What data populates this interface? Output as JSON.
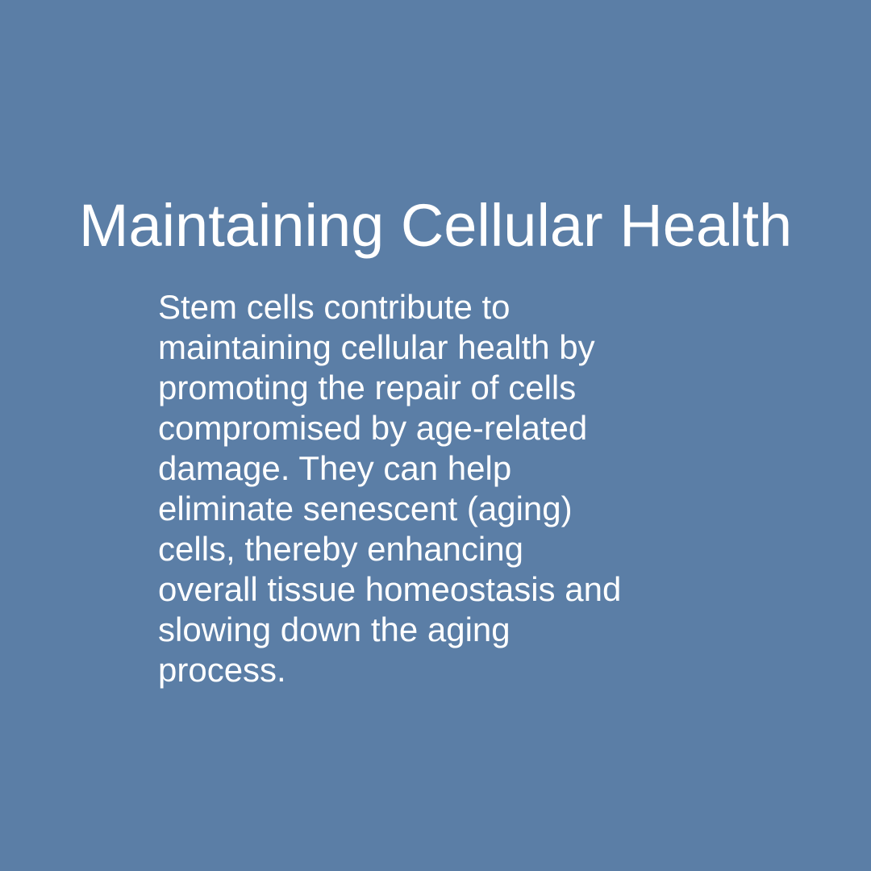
{
  "slide": {
    "title": "Maintaining Cellular Health",
    "body_lines": [
      "Stem cells contribute to",
      "maintaining cellular health by",
      "promoting the repair of cells",
      "compromised by age-related",
      "damage. They can help",
      "eliminate senescent (aging)",
      "cells, thereby enhancing",
      "overall tissue homeostasis and",
      "slowing down the aging",
      "process."
    ]
  },
  "colors": {
    "background": "#5b7ea6",
    "text": "#ffffff"
  }
}
